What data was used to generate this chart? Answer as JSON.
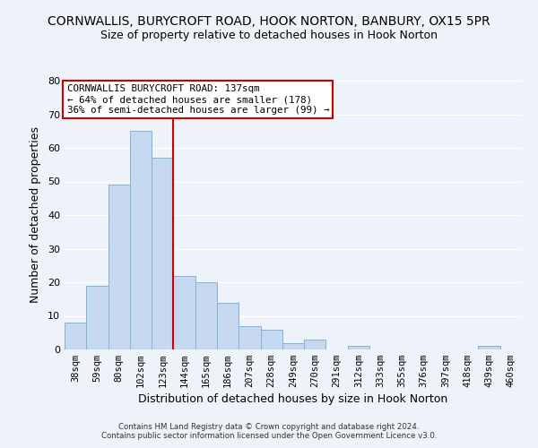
{
  "title": "CORNWALLIS, BURYCROFT ROAD, HOOK NORTON, BANBURY, OX15 5PR",
  "subtitle": "Size of property relative to detached houses in Hook Norton",
  "xlabel": "Distribution of detached houses by size in Hook Norton",
  "ylabel": "Number of detached properties",
  "bar_labels": [
    "38sqm",
    "59sqm",
    "80sqm",
    "102sqm",
    "123sqm",
    "144sqm",
    "165sqm",
    "186sqm",
    "207sqm",
    "228sqm",
    "249sqm",
    "270sqm",
    "291sqm",
    "312sqm",
    "333sqm",
    "355sqm",
    "376sqm",
    "397sqm",
    "418sqm",
    "439sqm",
    "460sqm"
  ],
  "bar_values": [
    8,
    19,
    49,
    65,
    57,
    22,
    20,
    14,
    7,
    6,
    2,
    3,
    0,
    1,
    0,
    0,
    0,
    0,
    0,
    1,
    0
  ],
  "bar_color": "#c5d8f0",
  "bar_edge_color": "#7fb4d8",
  "ylim": [
    0,
    80
  ],
  "yticks": [
    0,
    10,
    20,
    30,
    40,
    50,
    60,
    70,
    80
  ],
  "vline_color": "#cc0000",
  "annotation_title": "CORNWALLIS BURYCROFT ROAD: 137sqm",
  "annotation_line1": "← 64% of detached houses are smaller (178)",
  "annotation_line2": "36% of semi-detached houses are larger (99) →",
  "footer1": "Contains HM Land Registry data © Crown copyright and database right 2024.",
  "footer2": "Contains public sector information licensed under the Open Government Licence v3.0.",
  "background_color": "#eef2f9",
  "grid_color": "#ffffff",
  "title_fontsize": 10,
  "subtitle_fontsize": 9,
  "axis_label_fontsize": 9,
  "tick_fontsize": 7.5
}
